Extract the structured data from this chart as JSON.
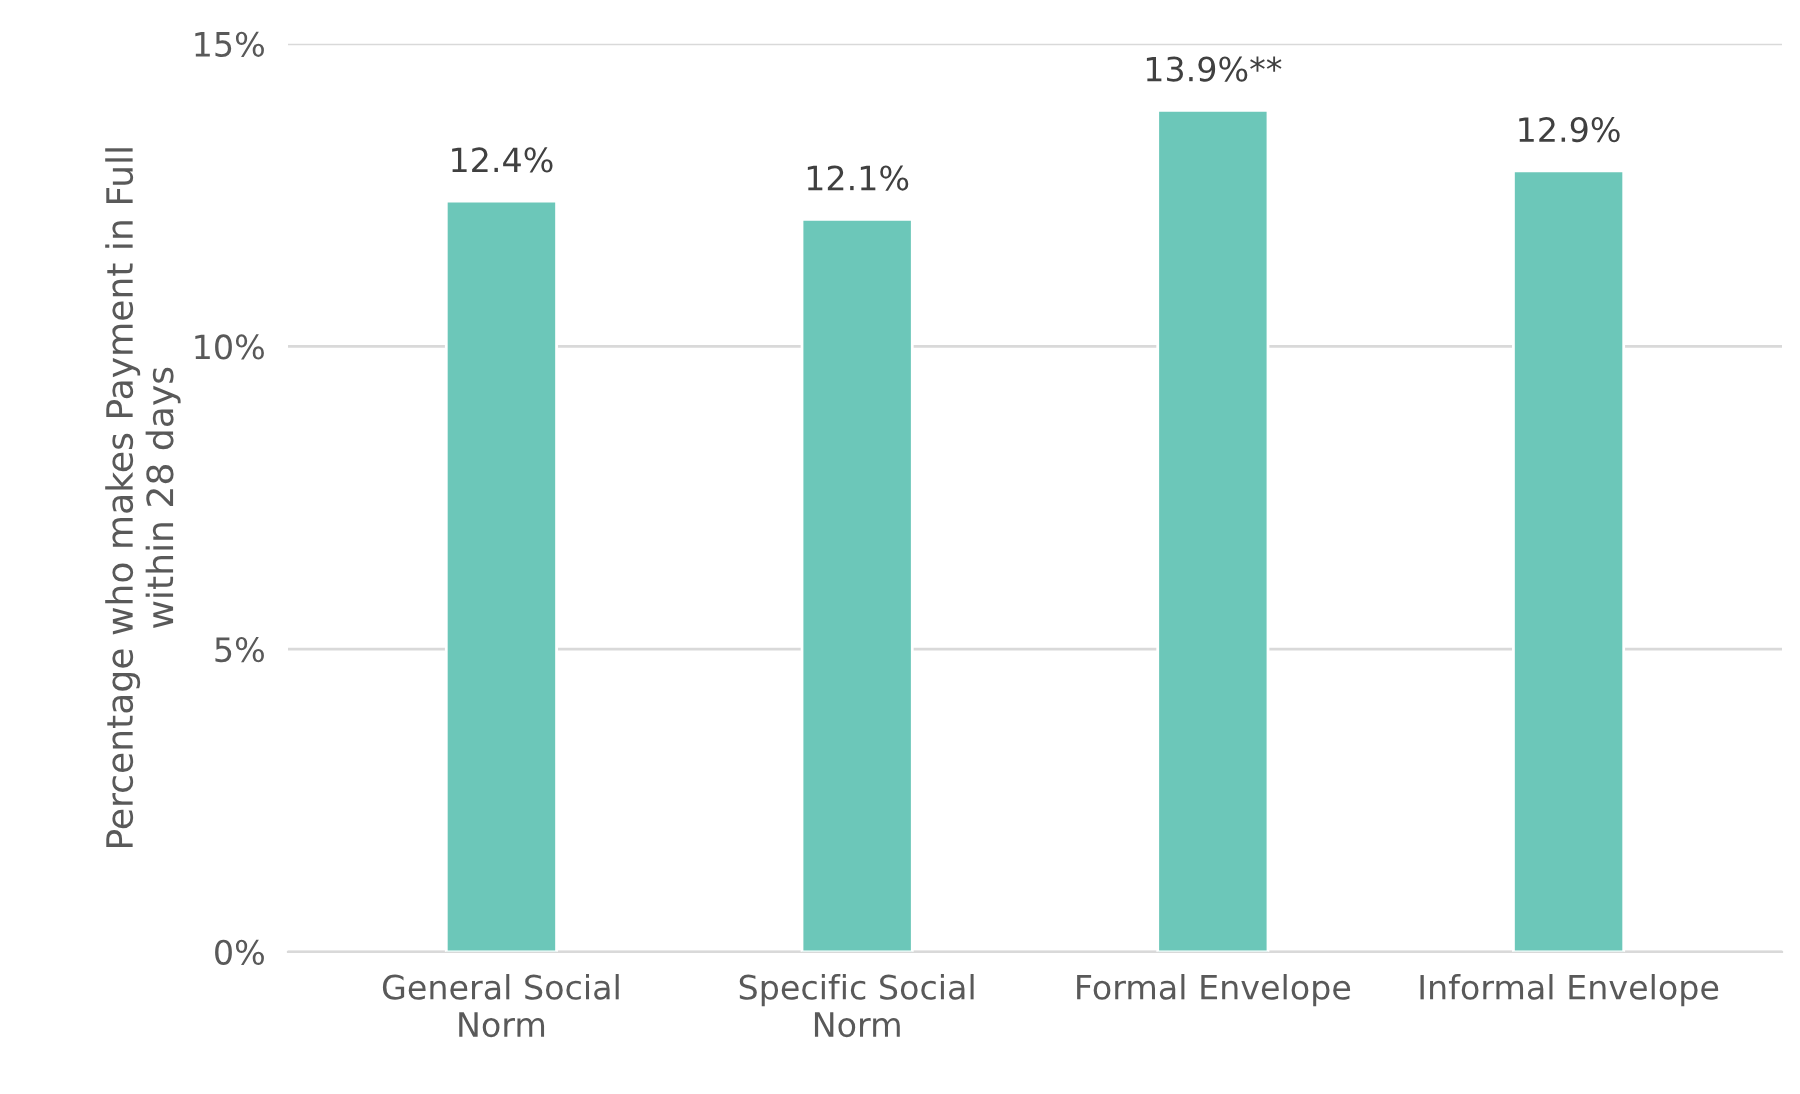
{
  "chart_data": {
    "type": "bar",
    "categories": [
      "General Social\nNorm",
      "Specific Social\nNorm",
      "Formal Envelope",
      "Informal Envelope"
    ],
    "values": [
      12.4,
      12.1,
      13.9,
      12.9
    ],
    "value_labels": [
      "12.4%",
      "12.1%",
      "13.9%**",
      "12.9%"
    ],
    "color": "#6cc7b9",
    "ylabel": "Percentage who makes Payment in Full\nwithin 28 days",
    "ylim": [
      0,
      15
    ],
    "yticks": [
      {
        "value": 0,
        "label": "0%"
      },
      {
        "value": 5,
        "label": "5%"
      },
      {
        "value": 10,
        "label": "10%"
      },
      {
        "value": 15,
        "label": "15%"
      }
    ],
    "grid": "y"
  }
}
